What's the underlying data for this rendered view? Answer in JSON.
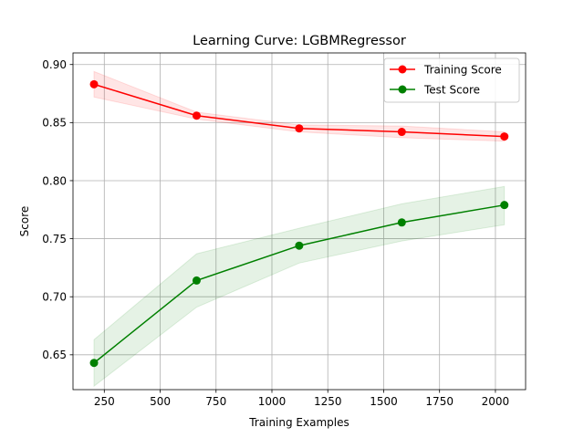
{
  "chart_data": {
    "type": "line",
    "title": "Learning Curve: LGBMRegressor",
    "xlabel": "Training Examples",
    "ylabel": "Score",
    "xlim": [
      110,
      2135
    ],
    "ylim": [
      0.62,
      0.91
    ],
    "xticks": [
      250,
      500,
      750,
      1000,
      1250,
      1500,
      1750,
      2000
    ],
    "xtick_labels": [
      "250",
      "500",
      "750",
      "1000",
      "1250",
      "1500",
      "1750",
      "2000"
    ],
    "yticks": [
      0.65,
      0.7,
      0.75,
      0.8,
      0.85,
      0.9
    ],
    "ytick_labels": [
      "0.65",
      "0.70",
      "0.75",
      "0.80",
      "0.85",
      "0.90"
    ],
    "grid": true,
    "legend_position": "top-right",
    "x": [
      204,
      663,
      1122,
      1581,
      2040
    ],
    "series": [
      {
        "name": "Training Score",
        "color": "#ff0000",
        "band_color": "#ff0000",
        "values": [
          0.883,
          0.856,
          0.845,
          0.842,
          0.838
        ],
        "lower": [
          0.872,
          0.853,
          0.842,
          0.837,
          0.834
        ],
        "upper": [
          0.894,
          0.859,
          0.848,
          0.847,
          0.842
        ]
      },
      {
        "name": "Test Score",
        "color": "#008000",
        "band_color": "#008000",
        "values": [
          0.643,
          0.714,
          0.744,
          0.764,
          0.779
        ],
        "lower": [
          0.623,
          0.691,
          0.729,
          0.748,
          0.762
        ],
        "upper": [
          0.663,
          0.737,
          0.759,
          0.78,
          0.795
        ]
      }
    ]
  }
}
